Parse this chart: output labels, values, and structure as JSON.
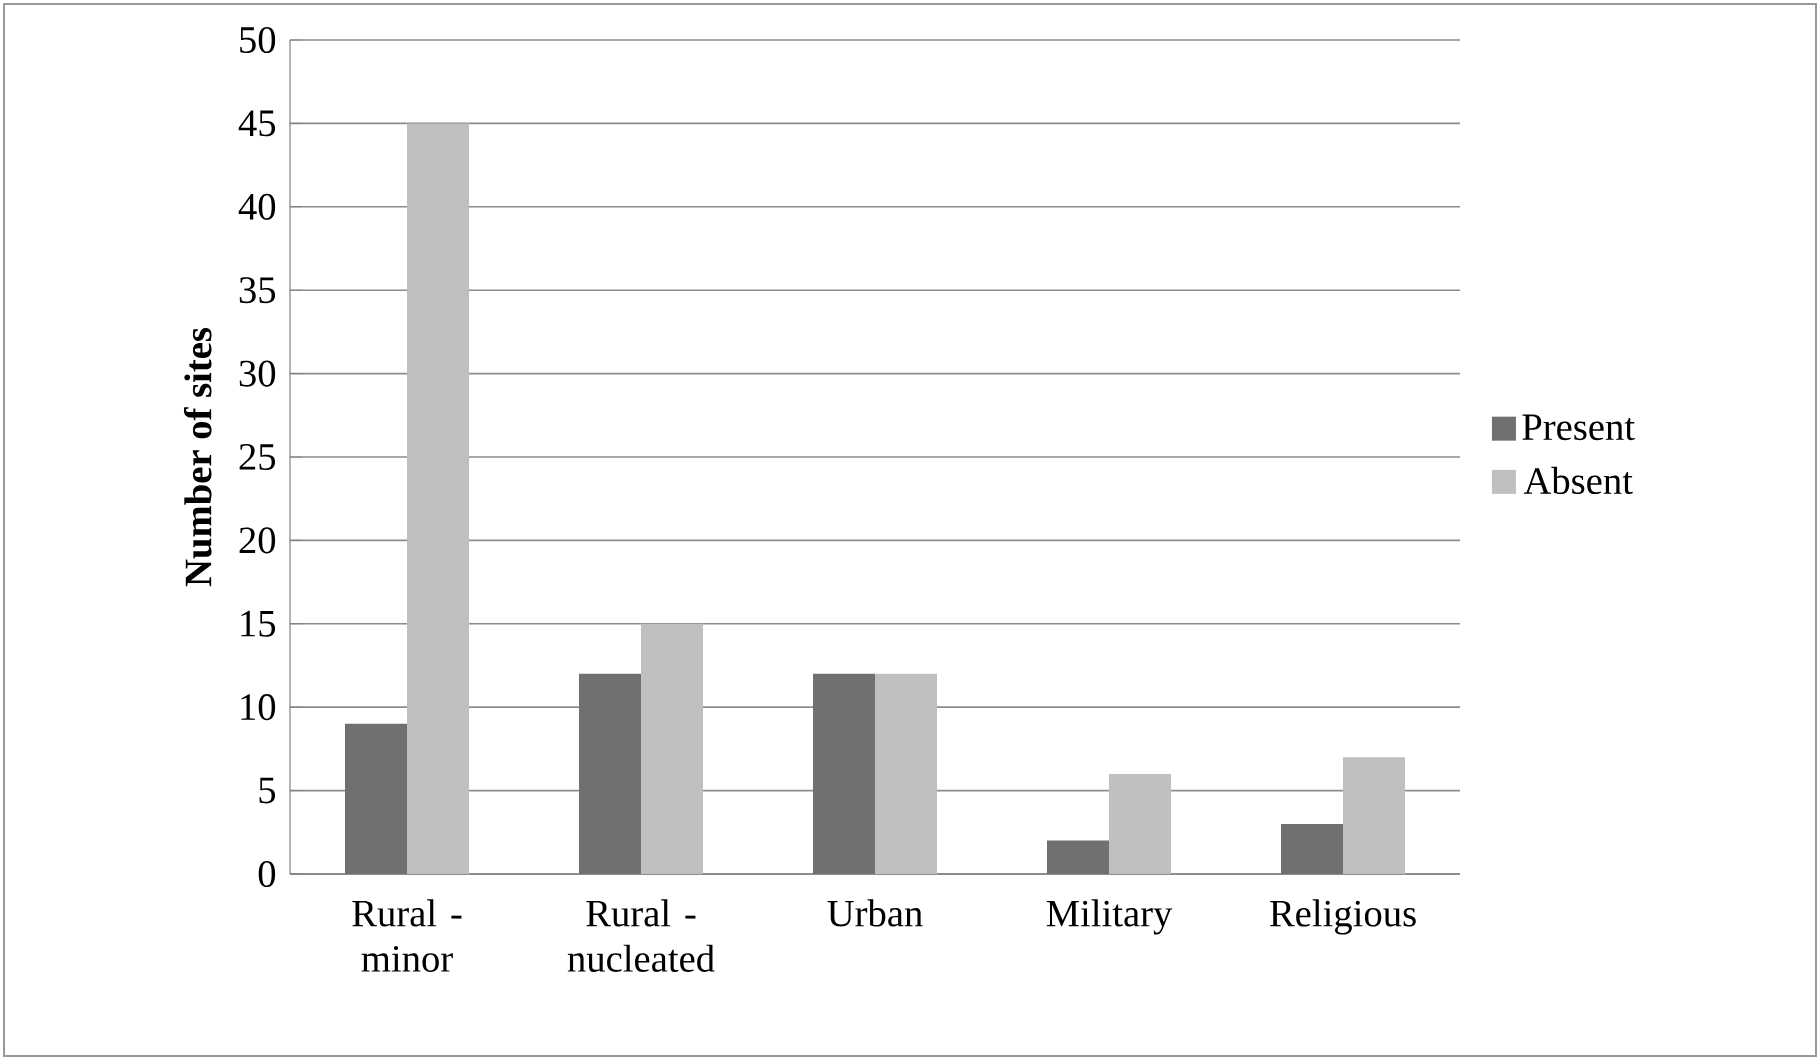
{
  "chart_data": {
    "type": "bar",
    "categories": [
      "Rural - minor",
      "Rural - nucleated",
      "Urban",
      "Military",
      "Religious"
    ],
    "series": [
      {
        "name": "Present",
        "color": "#707070",
        "values": [
          9,
          12,
          12,
          2,
          3
        ]
      },
      {
        "name": "Absent",
        "color": "#bfbfbf",
        "values": [
          45,
          15,
          12,
          6,
          7
        ]
      }
    ],
    "ylabel": "Number of sites",
    "ylim": [
      0,
      50
    ],
    "yticks": [
      0,
      5,
      10,
      15,
      20,
      25,
      30,
      35,
      40,
      45,
      50
    ],
    "grid": "y",
    "legend": "right"
  }
}
